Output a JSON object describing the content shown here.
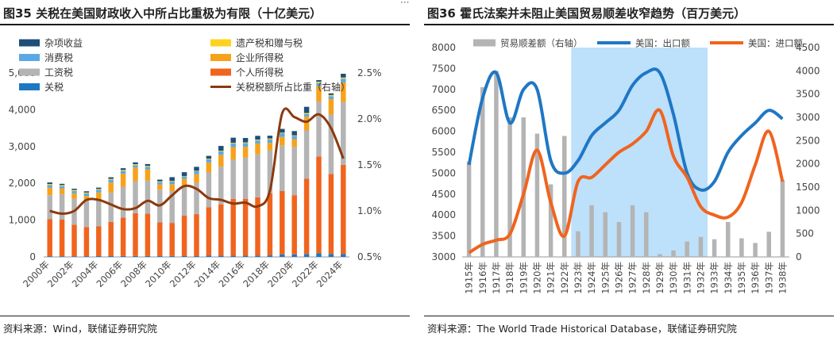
{
  "left": {
    "title": "图35 关税在美国财政收入中所占比重极为有限（十亿美元）",
    "source": "资料来源：Wind，联储证券研究院",
    "chart_data": {
      "type": "bar",
      "stacked": true,
      "categories": [
        "2000年",
        "2001年",
        "2002年",
        "2003年",
        "2004年",
        "2005年",
        "2006年",
        "2007年",
        "2008年",
        "2009年",
        "2010年",
        "2011年",
        "2012年",
        "2013年",
        "2014年",
        "2015年",
        "2016年",
        "2017年",
        "2018年",
        "2019年",
        "2020年",
        "2021年",
        "2022年",
        "2023年",
        "2024年"
      ],
      "category_tick_labels": [
        "2000年",
        "2002年",
        "2004年",
        "2006年",
        "2008年",
        "2010年",
        "2012年",
        "2014年",
        "2016年",
        "2018年",
        "2020年",
        "2022年",
        "2024年"
      ],
      "y_ticks": [
        "0",
        "1,000",
        "2,000",
        "3,000",
        "4,000",
        "5,000"
      ],
      "y_right_ticks": [
        "0.5%",
        "1.0%",
        "1.5%",
        "2.0%",
        "2.5%"
      ],
      "ylim": [
        0,
        5000
      ],
      "y_right_lim": [
        0.5,
        2.5
      ],
      "legend": {
        "placement": "top-left",
        "entries": [
          "杂项收益",
          "遗产税和赠与税",
          "消费税",
          "企业所得税",
          "工资税",
          "个人所得税",
          "关税",
          "关税税额所占比重（右轴）"
        ]
      },
      "series": [
        {
          "name": "关税",
          "color": "#1f77c4",
          "values": [
            20,
            19,
            19,
            20,
            21,
            23,
            25,
            26,
            28,
            23,
            25,
            29,
            30,
            32,
            34,
            35,
            35,
            35,
            41,
            71,
            69,
            80,
            100,
            80,
            77
          ]
        },
        {
          "name": "个人所得税",
          "color": "#f0641e",
          "values": [
            1004,
            994,
            858,
            794,
            809,
            927,
            1044,
            1163,
            1146,
            915,
            899,
            1091,
            1132,
            1316,
            1395,
            1541,
            1546,
            1587,
            1684,
            1718,
            1609,
            2044,
            2632,
            2176,
            2426
          ]
        },
        {
          "name": "工资税",
          "color": "#b4b4b4",
          "values": [
            652,
            694,
            701,
            713,
            733,
            794,
            838,
            870,
            900,
            891,
            865,
            819,
            845,
            947,
            1024,
            1065,
            1115,
            1162,
            1171,
            1243,
            1310,
            1314,
            1484,
            1614,
            1709
          ]
        },
        {
          "name": "企业所得税",
          "color": "#f7a21b",
          "values": [
            207,
            151,
            148,
            132,
            189,
            278,
            354,
            370,
            304,
            138,
            191,
            181,
            242,
            273,
            321,
            344,
            300,
            297,
            205,
            230,
            212,
            372,
            425,
            420,
            530
          ]
        },
        {
          "name": "消费税",
          "color": "#5aa9e6",
          "values": [
            69,
            66,
            67,
            68,
            70,
            73,
            74,
            65,
            67,
            62,
            67,
            72,
            79,
            84,
            93,
            98,
            95,
            84,
            95,
            99,
            87,
            75,
            88,
            76,
            102
          ]
        },
        {
          "name": "遗产税和赠与税",
          "color": "#ffd21f",
          "values": [
            29,
            28,
            27,
            22,
            25,
            25,
            28,
            26,
            29,
            23,
            19,
            7,
            14,
            19,
            19,
            19,
            21,
            23,
            23,
            17,
            18,
            27,
            33,
            34,
            32
          ]
        },
        {
          "name": "杂项收益",
          "color": "#1f4e79",
          "values": [
            43,
            35,
            34,
            35,
            37,
            45,
            48,
            50,
            50,
            49,
            102,
            104,
            107,
            75,
            130,
            138,
            121,
            103,
            76,
            102,
            115,
            168,
            43,
            46,
            102
          ]
        },
        {
          "name": "关税税额所占比重（右轴）",
          "type": "line",
          "axis": "right",
          "color": "#8b3a0e",
          "values": [
            1.0,
            0.97,
            1.0,
            1.12,
            1.12,
            1.07,
            1.02,
            1.03,
            1.11,
            1.06,
            1.17,
            1.27,
            1.24,
            1.14,
            1.12,
            1.08,
            1.09,
            1.05,
            1.22,
            2.06,
            2.02,
            1.97,
            2.05,
            1.9,
            1.57
          ]
        }
      ]
    }
  },
  "right": {
    "title": "图36 霍氏法案并未阻止美国贸易顺差收窄趋势（百万美元）",
    "source": "资料来源：The World Trade Historical Database，联储证券研究院",
    "chart_data": {
      "type": "bar",
      "combo": true,
      "categories": [
        "1915年",
        "1916年",
        "1917年",
        "1918年",
        "1919年",
        "1920年",
        "1921年",
        "1922年",
        "1923年",
        "1924年",
        "1925年",
        "1926年",
        "1927年",
        "1928年",
        "1929年",
        "1930年",
        "1931年",
        "1932年",
        "1933年",
        "1934年",
        "1935年",
        "1936年",
        "1937年",
        "1938年"
      ],
      "y_ticks": [
        "3000",
        "3500",
        "4000",
        "4500",
        "5000",
        "5500",
        "6000",
        "6500",
        "7000",
        "7500",
        "8000"
      ],
      "y_right_ticks": [
        "0",
        "500",
        "1000",
        "1500",
        "2000",
        "2500",
        "3000",
        "3500",
        "4000",
        "4500"
      ],
      "ylim": [
        3000,
        8000
      ],
      "y_right_lim": [
        0,
        4500
      ],
      "shaded_range": [
        "1923年",
        "1932年"
      ],
      "shade_color": "#bde0fb",
      "legend": {
        "placement": "top",
        "entries": [
          "贸易顺差额（右轴）",
          "美国：出口额",
          "美国：进口额"
        ]
      },
      "series": [
        {
          "name": "贸易顺差额（右轴）",
          "type": "bar",
          "axis": "right",
          "color": "#b4b4b4",
          "values": [
            2050,
            3650,
            4000,
            3000,
            3000,
            2650,
            1560,
            2600,
            550,
            1110,
            960,
            750,
            1110,
            960,
            60,
            140,
            330,
            430,
            380,
            750,
            400,
            300,
            540,
            1650
          ]
        },
        {
          "name": "美国：出口额",
          "type": "line",
          "color": "#1f77c4",
          "values": [
            5200,
            6800,
            7400,
            6200,
            7000,
            7000,
            5300,
            5000,
            5300,
            5900,
            6200,
            6500,
            7100,
            7400,
            7400,
            6400,
            5000,
            4600,
            4800,
            5500,
            5900,
            6200,
            6500,
            6300
          ]
        },
        {
          "name": "美国：进口额",
          "type": "line",
          "color": "#f0641e",
          "values": [
            3100,
            3300,
            3400,
            3550,
            4500,
            5550,
            4300,
            3500,
            4800,
            4900,
            5200,
            5500,
            5700,
            6000,
            6500,
            5400,
            4900,
            4200,
            4000,
            3950,
            4300,
            5200,
            6000,
            4800
          ]
        }
      ]
    }
  }
}
